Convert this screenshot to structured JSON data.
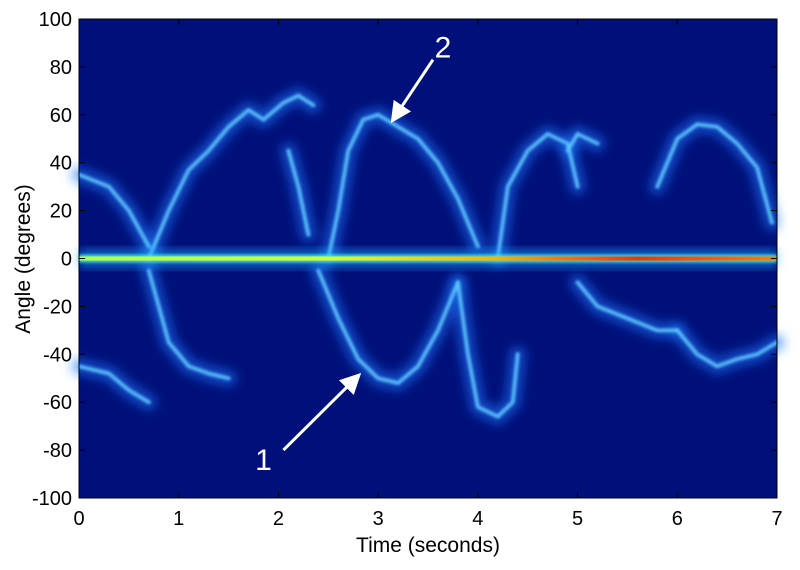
{
  "chart_data": {
    "type": "heatmap",
    "title": "",
    "xlabel": "Time (seconds)",
    "ylabel": "Angle (degrees)",
    "xlim": [
      0,
      7
    ],
    "ylim": [
      -100,
      100
    ],
    "xticks": [
      0,
      1,
      2,
      3,
      4,
      5,
      6,
      7
    ],
    "yticks": [
      100,
      80,
      60,
      40,
      20,
      0,
      -20,
      -40,
      -60,
      -80,
      -100
    ],
    "colormap": "jet",
    "background_color": "#00107a",
    "grid": false,
    "annotations": [
      {
        "label": "2",
        "from": [
          3.55,
          83
        ],
        "to": [
          3.15,
          58
        ]
      },
      {
        "label": "1",
        "from": [
          2.05,
          -80
        ],
        "to": [
          2.8,
          -49
        ]
      }
    ],
    "traces": [
      {
        "points": [
          [
            0,
            0
          ],
          [
            7,
            0
          ]
        ]
      },
      {
        "points": [
          [
            0,
            35
          ],
          [
            0.3,
            30
          ],
          [
            0.5,
            20
          ],
          [
            0.7,
            5
          ]
        ]
      },
      {
        "points": [
          [
            0,
            -45
          ],
          [
            0.3,
            -48
          ],
          [
            0.5,
            -55
          ],
          [
            0.7,
            -60
          ]
        ]
      },
      {
        "points": [
          [
            0.7,
            0
          ],
          [
            0.9,
            20
          ],
          [
            1.1,
            37
          ],
          [
            1.3,
            45
          ],
          [
            1.5,
            55
          ],
          [
            1.7,
            62
          ],
          [
            1.85,
            58
          ],
          [
            2.05,
            65
          ],
          [
            2.2,
            68
          ],
          [
            2.35,
            64
          ]
        ]
      },
      {
        "points": [
          [
            0.7,
            -5
          ],
          [
            0.9,
            -35
          ],
          [
            1.1,
            -45
          ],
          [
            1.3,
            -48
          ],
          [
            1.5,
            -50
          ]
        ]
      },
      {
        "points": [
          [
            2.1,
            45
          ],
          [
            2.2,
            30
          ],
          [
            2.3,
            10
          ]
        ]
      },
      {
        "points": [
          [
            2.5,
            0
          ],
          [
            2.6,
            20
          ],
          [
            2.7,
            45
          ],
          [
            2.85,
            58
          ],
          [
            3.0,
            60
          ],
          [
            3.2,
            55
          ],
          [
            3.4,
            50
          ],
          [
            3.6,
            40
          ],
          [
            3.8,
            25
          ],
          [
            4.0,
            5
          ]
        ]
      },
      {
        "points": [
          [
            2.4,
            -5
          ],
          [
            2.6,
            -25
          ],
          [
            2.8,
            -42
          ],
          [
            3.0,
            -50
          ],
          [
            3.2,
            -52
          ],
          [
            3.4,
            -45
          ],
          [
            3.6,
            -30
          ],
          [
            3.8,
            -10
          ]
        ]
      },
      {
        "points": [
          [
            3.8,
            -10
          ],
          [
            3.9,
            -40
          ],
          [
            4.0,
            -62
          ],
          [
            4.2,
            -66
          ],
          [
            4.35,
            -60
          ],
          [
            4.4,
            -40
          ]
        ]
      },
      {
        "points": [
          [
            4.2,
            0
          ],
          [
            4.3,
            30
          ],
          [
            4.5,
            45
          ],
          [
            4.7,
            52
          ],
          [
            4.9,
            48
          ],
          [
            5.0,
            30
          ]
        ]
      },
      {
        "points": [
          [
            4.9,
            45
          ],
          [
            5.0,
            52
          ],
          [
            5.2,
            48
          ]
        ]
      },
      {
        "points": [
          [
            5.0,
            -10
          ],
          [
            5.2,
            -20
          ],
          [
            5.5,
            -25
          ],
          [
            5.8,
            -30
          ],
          [
            6.0,
            -30
          ]
        ]
      },
      {
        "points": [
          [
            5.8,
            30
          ],
          [
            6.0,
            50
          ],
          [
            6.2,
            56
          ],
          [
            6.4,
            55
          ],
          [
            6.6,
            48
          ],
          [
            6.8,
            38
          ],
          [
            6.95,
            15
          ]
        ]
      },
      {
        "points": [
          [
            6.0,
            -30
          ],
          [
            6.2,
            -40
          ],
          [
            6.4,
            -45
          ],
          [
            6.6,
            -42
          ],
          [
            6.8,
            -40
          ],
          [
            7.0,
            -35
          ]
        ]
      }
    ]
  }
}
